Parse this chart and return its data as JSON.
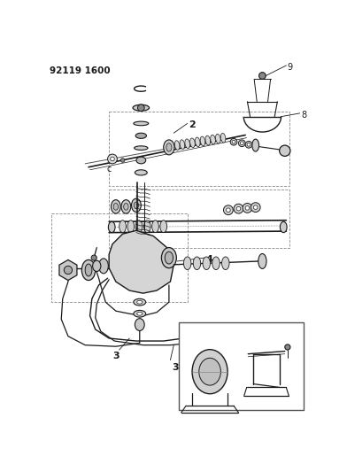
{
  "title_code": "92119 1600",
  "bg_color": "#ffffff",
  "line_color": "#1a1a1a",
  "fig_width": 3.92,
  "fig_height": 5.33,
  "dpi": 100,
  "title_fontsize": 7.5,
  "label_fontsize": 7.0
}
